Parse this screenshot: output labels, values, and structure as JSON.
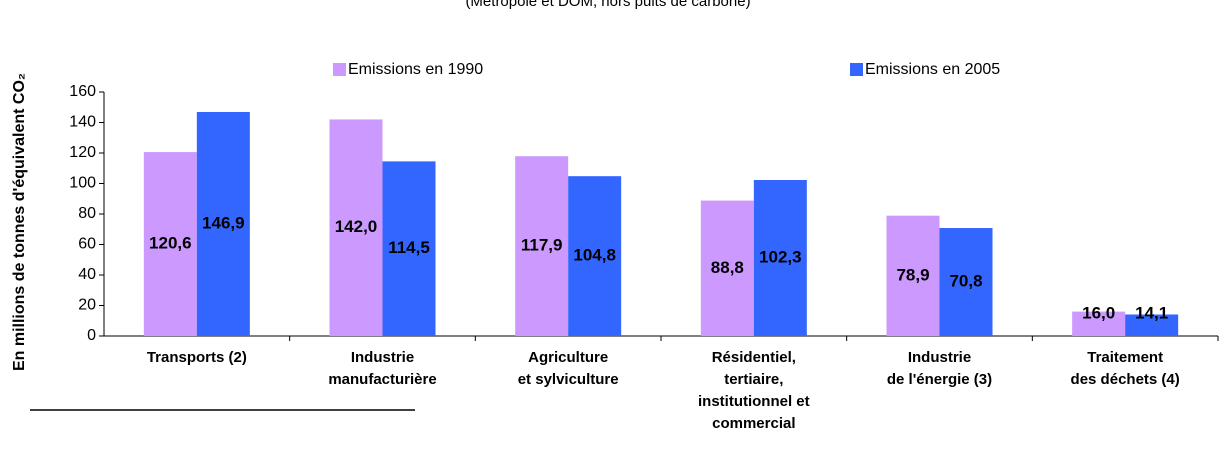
{
  "chart_data": {
    "type": "bar",
    "subtitle": "(Métropole et DOM, hors puits de carbone)",
    "y_label": "En millions de tonnes d'équivalent CO₂",
    "categories": [
      "Transports (2)",
      "Industrie\nmanufacturière",
      "Agriculture\net sylviculture",
      "Résidentiel,\ntertiaire,\ninstitutionnel et\ncommercial",
      "Industrie\nde l'énergie (3)",
      "Traitement\ndes déchets (4)"
    ],
    "series": [
      {
        "name": "Emissions en 1990",
        "color": "#cc99ff",
        "values": [
          120.6,
          142.0,
          117.9,
          88.8,
          78.9,
          16.0
        ],
        "value_labels": [
          "120,6",
          "142,0",
          "117,9",
          "88,8",
          "78,9",
          "16,0"
        ]
      },
      {
        "name": "Emissions en 2005",
        "color": "#3366ff",
        "values": [
          146.9,
          114.5,
          104.8,
          102.3,
          70.8,
          14.1
        ],
        "value_labels": [
          "146,9",
          "114,5",
          "104,8",
          "102,3",
          "70,8",
          "14,1"
        ]
      }
    ],
    "ylim": [
      0,
      160
    ],
    "yticks": [
      0,
      20,
      40,
      60,
      80,
      100,
      120,
      140,
      160
    ],
    "grid": false
  }
}
